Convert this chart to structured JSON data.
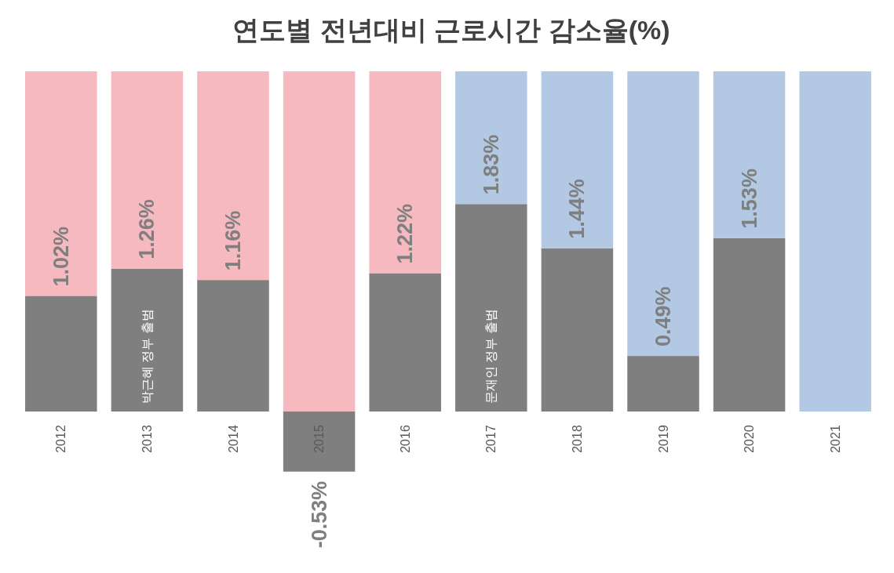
{
  "chart_data": {
    "type": "bar",
    "title": "연도별 전년대비 근로시간 감소율(%)",
    "stacked": true,
    "categories": [
      "2012",
      "2013",
      "2014",
      "2015",
      "2016",
      "2017",
      "2018",
      "2019",
      "2020",
      "2021"
    ],
    "series": [
      {
        "color": "#7f7f7f",
        "values": [
          1.02,
          1.26,
          1.16,
          -0.53,
          1.22,
          1.83,
          1.44,
          0.49,
          1.53,
          null
        ],
        "value_labels": [
          "1.02%",
          "1.26%",
          "1.16%",
          "-0.53%",
          "1.22%",
          "1.83%",
          "1.44%",
          "0.49%",
          "1.53%",
          null
        ]
      },
      {
        "colors": [
          "#f5b9bf",
          "#f5b9bf",
          "#f5b9bf",
          "#f5b9bf",
          "#f5b9bf",
          "#b3c9e3",
          "#b3c9e3",
          "#b3c9e3",
          "#b3c9e3",
          "#b3c9e3"
        ],
        "values": [
          1.98,
          1.74,
          1.84,
          3,
          1.78,
          1.17,
          1.56,
          2.51,
          1.47,
          3
        ]
      }
    ],
    "annotations": [
      "박근혜 정부 출범",
      "문재인 정부 출범"
    ]
  }
}
